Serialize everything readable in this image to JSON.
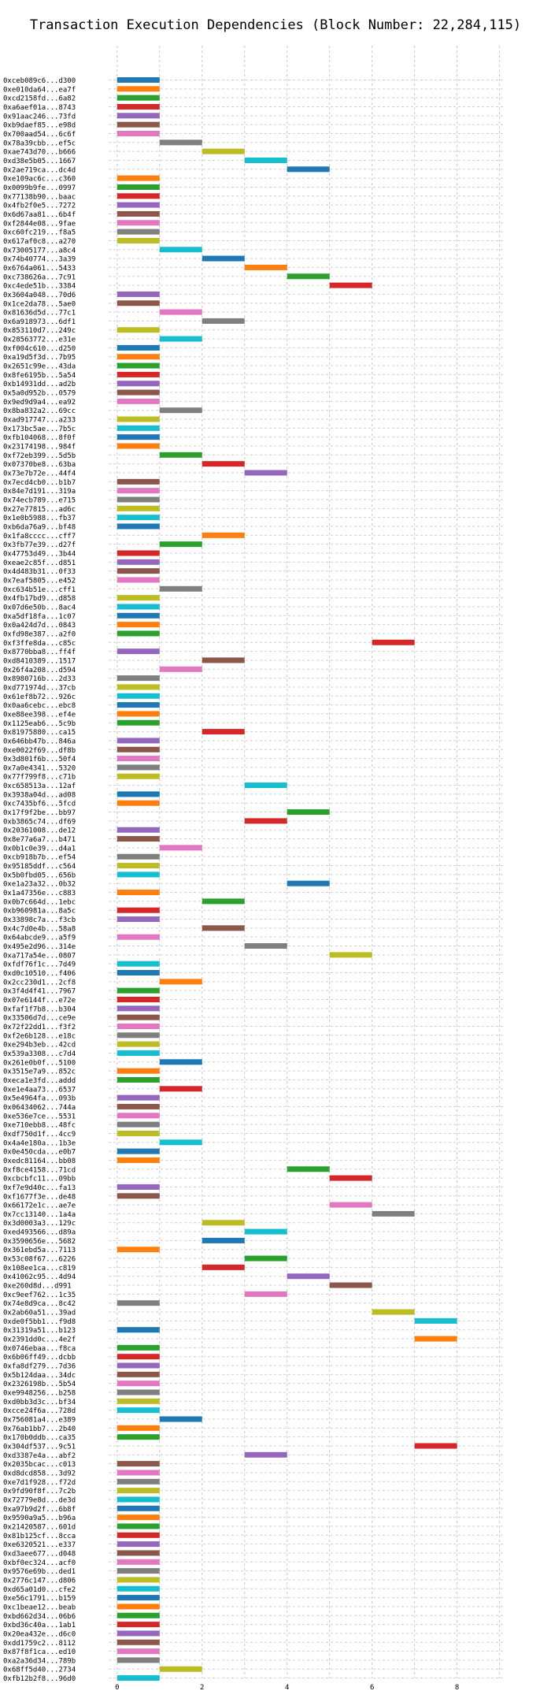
{
  "chart_data": {
    "type": "bar",
    "title": "Transaction Execution Dependencies (Block Number: 22,284,115)",
    "xlabel": "",
    "ylabel": "",
    "xlim": [
      -0.2,
      9.1
    ],
    "xticks": [
      0,
      2,
      4,
      6,
      8
    ],
    "grid": true,
    "palette": [
      "#1f77b4",
      "#ff7f0e",
      "#2ca02c",
      "#d62728",
      "#9467bd",
      "#8c564b",
      "#e377c2",
      "#7f7f7f",
      "#bcbd22",
      "#17becf"
    ],
    "bars": [
      {
        "tx": "0xceb089c6...d300",
        "start": 0
      },
      {
        "tx": "0xe010da64...ea7f",
        "start": 0
      },
      {
        "tx": "0xcd2158fd...6a82",
        "start": 0
      },
      {
        "tx": "0xa6aef01a...8743",
        "start": 0
      },
      {
        "tx": "0x91aac246...73fd",
        "start": 0
      },
      {
        "tx": "0xb9daef85...e98d",
        "start": 0
      },
      {
        "tx": "0x700aad54...6c6f",
        "start": 0
      },
      {
        "tx": "0x78a39cbb...ef5c",
        "start": 1
      },
      {
        "tx": "0xae743d70...b666",
        "start": 2
      },
      {
        "tx": "0xd38e5b05...1667",
        "start": 3
      },
      {
        "tx": "0x2ae719ca...dc4d",
        "start": 4
      },
      {
        "tx": "0xe109ac6c...c360",
        "start": 0
      },
      {
        "tx": "0x0099b9fe...0997",
        "start": 0
      },
      {
        "tx": "0x77138b90...baac",
        "start": 0
      },
      {
        "tx": "0x4fb2f0e5...7272",
        "start": 0
      },
      {
        "tx": "0x6d67aa81...6b4f",
        "start": 0
      },
      {
        "tx": "0xf2844e08...9fae",
        "start": 0
      },
      {
        "tx": "0xc60fc219...f8a5",
        "start": 0
      },
      {
        "tx": "0x617af0c8...a270",
        "start": 0
      },
      {
        "tx": "0x73005177...a8c4",
        "start": 1
      },
      {
        "tx": "0x74b40774...3a39",
        "start": 2
      },
      {
        "tx": "0x6764a061...5433",
        "start": 3
      },
      {
        "tx": "0xc738626a...7c91",
        "start": 4
      },
      {
        "tx": "0xc4ede51b...3384",
        "start": 5
      },
      {
        "tx": "0x3604a048...70d6",
        "start": 0
      },
      {
        "tx": "0x1ce2da78...5ae0",
        "start": 0
      },
      {
        "tx": "0x81636d5d...77c1",
        "start": 1
      },
      {
        "tx": "0x6a918973...6df1",
        "start": 2
      },
      {
        "tx": "0x853110d7...249c",
        "start": 0
      },
      {
        "tx": "0x28563772...e31e",
        "start": 1
      },
      {
        "tx": "0xf004c610...d250",
        "start": 0
      },
      {
        "tx": "0xa19d5f3d...7b95",
        "start": 0
      },
      {
        "tx": "0x2651c99e...43da",
        "start": 0
      },
      {
        "tx": "0x8fe6195b...5a54",
        "start": 0
      },
      {
        "tx": "0xb14931dd...ad2b",
        "start": 0
      },
      {
        "tx": "0x5a0d952b...0579",
        "start": 0
      },
      {
        "tx": "0x9ed9d9a4...ea92",
        "start": 0
      },
      {
        "tx": "0x8ba832a2...69cc",
        "start": 1
      },
      {
        "tx": "0xad917747...a233",
        "start": 0
      },
      {
        "tx": "0x173bc5ae...7b5c",
        "start": 0
      },
      {
        "tx": "0xfb104068...8f0f",
        "start": 0
      },
      {
        "tx": "0x23174198...984f",
        "start": 0
      },
      {
        "tx": "0xf72eb399...5d5b",
        "start": 1
      },
      {
        "tx": "0x07370be8...63ba",
        "start": 2
      },
      {
        "tx": "0x73e7b72e...44f4",
        "start": 3
      },
      {
        "tx": "0x7ecd4cb0...b1b7",
        "start": 0
      },
      {
        "tx": "0x84e7d191...319a",
        "start": 0
      },
      {
        "tx": "0x74ecb789...e715",
        "start": 0
      },
      {
        "tx": "0x27e77815...ad6c",
        "start": 0
      },
      {
        "tx": "0x1e0b5988...fb37",
        "start": 0
      },
      {
        "tx": "0xb6da76a9...bf48",
        "start": 0
      },
      {
        "tx": "0x1fa8cccc...cff7",
        "start": 2
      },
      {
        "tx": "0x3fb77e39...d27f",
        "start": 1
      },
      {
        "tx": "0x47753d49...3b44",
        "start": 0
      },
      {
        "tx": "0xeae2c85f...d851",
        "start": 0
      },
      {
        "tx": "0x4d483b31...0f33",
        "start": 0
      },
      {
        "tx": "0x7eaf5805...e452",
        "start": 0
      },
      {
        "tx": "0xc634b51e...cff1",
        "start": 1
      },
      {
        "tx": "0x4fb17bd9...d858",
        "start": 0
      },
      {
        "tx": "0x07d6e50b...8ac4",
        "start": 0
      },
      {
        "tx": "0xa5df18fa...1c07",
        "start": 0
      },
      {
        "tx": "0x0a424d7d...0843",
        "start": 0
      },
      {
        "tx": "0xfd98e387...a2f0",
        "start": 0
      },
      {
        "tx": "0xf3ffe8da...c85c",
        "start": 6
      },
      {
        "tx": "0x8770bba8...ff4f",
        "start": 0
      },
      {
        "tx": "0xd8410389...1517",
        "start": 2
      },
      {
        "tx": "0x26f4a208...d594",
        "start": 1
      },
      {
        "tx": "0x8980716b...2d33",
        "start": 0
      },
      {
        "tx": "0xd771974d...37cb",
        "start": 0
      },
      {
        "tx": "0x61ef8b72...926c",
        "start": 0
      },
      {
        "tx": "0x0aa6cebc...ebc8",
        "start": 0
      },
      {
        "tx": "0xe88ee398...ef4e",
        "start": 0
      },
      {
        "tx": "0x1125eab6...5c9b",
        "start": 0
      },
      {
        "tx": "0x81975880...ca15",
        "start": 2
      },
      {
        "tx": "0x646bb47b...846a",
        "start": 0
      },
      {
        "tx": "0xe0022f69...df8b",
        "start": 0
      },
      {
        "tx": "0x3d801f6b...50f4",
        "start": 0
      },
      {
        "tx": "0x7a0e4341...5320",
        "start": 0
      },
      {
        "tx": "0x77f799f8...c71b",
        "start": 0
      },
      {
        "tx": "0xc658513a...12af",
        "start": 3
      },
      {
        "tx": "0x3938a04d...ad08",
        "start": 0
      },
      {
        "tx": "0xc7435bf6...5fcd",
        "start": 0
      },
      {
        "tx": "0x17f9f2be...bb97",
        "start": 4
      },
      {
        "tx": "0xb3865c74...df69",
        "start": 3
      },
      {
        "tx": "0x20361008...de12",
        "start": 0
      },
      {
        "tx": "0x8e77a6a7...b471",
        "start": 0
      },
      {
        "tx": "0x0b1c0e39...d4a1",
        "start": 1
      },
      {
        "tx": "0xcb918b7b...ef54",
        "start": 0
      },
      {
        "tx": "0x95185ddf...c564",
        "start": 0
      },
      {
        "tx": "0x5b0fbd05...656b",
        "start": 0
      },
      {
        "tx": "0xe1a23a32...0b32",
        "start": 4
      },
      {
        "tx": "0x1a47356e...c883",
        "start": 0
      },
      {
        "tx": "0x0b7c664d...1ebc",
        "start": 2
      },
      {
        "tx": "0xb960981a...8a5c",
        "start": 0
      },
      {
        "tx": "0x33898c7a...f3cb",
        "start": 0
      },
      {
        "tx": "0x4c7d0e4b...58a8",
        "start": 2
      },
      {
        "tx": "0x64abcde9...a5f9",
        "start": 0
      },
      {
        "tx": "0x495e2d96...314e",
        "start": 3
      },
      {
        "tx": "0xa717a54e...0807",
        "start": 5
      },
      {
        "tx": "0xfdf76f1c...7d49",
        "start": 0
      },
      {
        "tx": "0xd0c10510...f406",
        "start": 0
      },
      {
        "tx": "0x2cc230d1...2cf8",
        "start": 1
      },
      {
        "tx": "0x3f4d4f41...7967",
        "start": 0
      },
      {
        "tx": "0x07e6144f...e72e",
        "start": 0
      },
      {
        "tx": "0xfaf1f7b8...b304",
        "start": 0
      },
      {
        "tx": "0x33506d7d...ce9e",
        "start": 0
      },
      {
        "tx": "0x72f22dd1...f3f2",
        "start": 0
      },
      {
        "tx": "0xf2e6b128...e18c",
        "start": 0
      },
      {
        "tx": "0xe294b3eb...42cd",
        "start": 0
      },
      {
        "tx": "0x539a3308...c7d4",
        "start": 0
      },
      {
        "tx": "0x261e0b0f...5100",
        "start": 1
      },
      {
        "tx": "0x3515e7a9...852c",
        "start": 0
      },
      {
        "tx": "0xeca1e3fd...addd",
        "start": 0
      },
      {
        "tx": "0xe1e4aa73...6537",
        "start": 1
      },
      {
        "tx": "0x5e4964fa...093b",
        "start": 0
      },
      {
        "tx": "0x06434062...744a",
        "start": 0
      },
      {
        "tx": "0xe536e7ce...5531",
        "start": 0
      },
      {
        "tx": "0xe710ebb8...48fc",
        "start": 0
      },
      {
        "tx": "0xdf750d1f...4cc9",
        "start": 0
      },
      {
        "tx": "0x4a4e180a...1b3e",
        "start": 1
      },
      {
        "tx": "0x0e450cda...e0b7",
        "start": 0
      },
      {
        "tx": "0xedc81164...bb08",
        "start": 0
      },
      {
        "tx": "0xf8ce4158...71cd",
        "start": 4
      },
      {
        "tx": "0xcbcbfc11...09bb",
        "start": 5
      },
      {
        "tx": "0xf7e9d40c...fa13",
        "start": 0
      },
      {
        "tx": "0xf1677f3e...de48",
        "start": 0
      },
      {
        "tx": "0x66172e1c...ae7e",
        "start": 5
      },
      {
        "tx": "0x7cc13140...1a4a",
        "start": 6
      },
      {
        "tx": "0x3d0003a3...129c",
        "start": 2
      },
      {
        "tx": "0xed493566...d89a",
        "start": 3
      },
      {
        "tx": "0x3590656e...5682",
        "start": 2
      },
      {
        "tx": "0x361ebd5a...7113",
        "start": 0
      },
      {
        "tx": "0x53c08f67...6226",
        "start": 3
      },
      {
        "tx": "0x108ee1ca...c819",
        "start": 2
      },
      {
        "tx": "0x41062c95...4d94",
        "start": 4
      },
      {
        "tx": "0xe260d8d...d991",
        "start": 5
      },
      {
        "tx": "0xc9eef762...1c35",
        "start": 3
      },
      {
        "tx": "0x74e8d9ca...8c42",
        "start": 0
      },
      {
        "tx": "0x2ab60a51...39ad",
        "start": 6
      },
      {
        "tx": "0xde0f5bb1...f9d8",
        "start": 7
      },
      {
        "tx": "0x31319a51...b123",
        "start": 0
      },
      {
        "tx": "0x2391dd0c...4e2f",
        "start": 7
      },
      {
        "tx": "0x0746ebaa...f8ca",
        "start": 0
      },
      {
        "tx": "0x6b06ff49...dcbb",
        "start": 0
      },
      {
        "tx": "0xfa8df279...7d36",
        "start": 0
      },
      {
        "tx": "0x5b124daa...34dc",
        "start": 0
      },
      {
        "tx": "0x2326198b...5b54",
        "start": 0
      },
      {
        "tx": "0xe9948256...b258",
        "start": 0
      },
      {
        "tx": "0xd0bb3d3c...bf34",
        "start": 0
      },
      {
        "tx": "0xcce24f6a...728d",
        "start": 0
      },
      {
        "tx": "0x756081a4...e389",
        "start": 1
      },
      {
        "tx": "0x76ab1bb7...2b40",
        "start": 0
      },
      {
        "tx": "0x170b0ddb...ca35",
        "start": 0
      },
      {
        "tx": "0x304df537...9c51",
        "start": 7
      },
      {
        "tx": "0xd3387e4a...abf2",
        "start": 3
      },
      {
        "tx": "0x2035bcac...c013",
        "start": 0
      },
      {
        "tx": "0xd8dcd858...3d92",
        "start": 0
      },
      {
        "tx": "0xe7d1f928...f72d",
        "start": 0
      },
      {
        "tx": "0x9fd90f8f...7c2b",
        "start": 0
      },
      {
        "tx": "0x72779e8d...de3d",
        "start": 0
      },
      {
        "tx": "0xa97b9d2f...6b8f",
        "start": 0
      },
      {
        "tx": "0x9590a9a5...b96a",
        "start": 0
      },
      {
        "tx": "0x21420587...601d",
        "start": 0
      },
      {
        "tx": "0x81b125cf...8cca",
        "start": 0
      },
      {
        "tx": "0xe6320521...e337",
        "start": 0
      },
      {
        "tx": "0xd3aee677...d048",
        "start": 0
      },
      {
        "tx": "0xbf0ec324...acf0",
        "start": 0
      },
      {
        "tx": "0x9576e69b...ded1",
        "start": 0
      },
      {
        "tx": "0x2776c147...d806",
        "start": 0
      },
      {
        "tx": "0xd65a01d0...cfe2",
        "start": 0
      },
      {
        "tx": "0xe56c1791...b159",
        "start": 0
      },
      {
        "tx": "0xc1beae12...beab",
        "start": 0
      },
      {
        "tx": "0xbd662d34...06b6",
        "start": 0
      },
      {
        "tx": "0xbd36c40a...1ab1",
        "start": 0
      },
      {
        "tx": "0x20ea432e...d6c0",
        "start": 0
      },
      {
        "tx": "0xdd1759c2...8112",
        "start": 0
      },
      {
        "tx": "0x87f8f1ca...ed10",
        "start": 0
      },
      {
        "tx": "0xa2a36d34...789b",
        "start": 0
      },
      {
        "tx": "0x68ff5d40...2734",
        "start": 1
      },
      {
        "tx": "0xfb12b2f8...96d0",
        "start": 0
      }
    ]
  }
}
